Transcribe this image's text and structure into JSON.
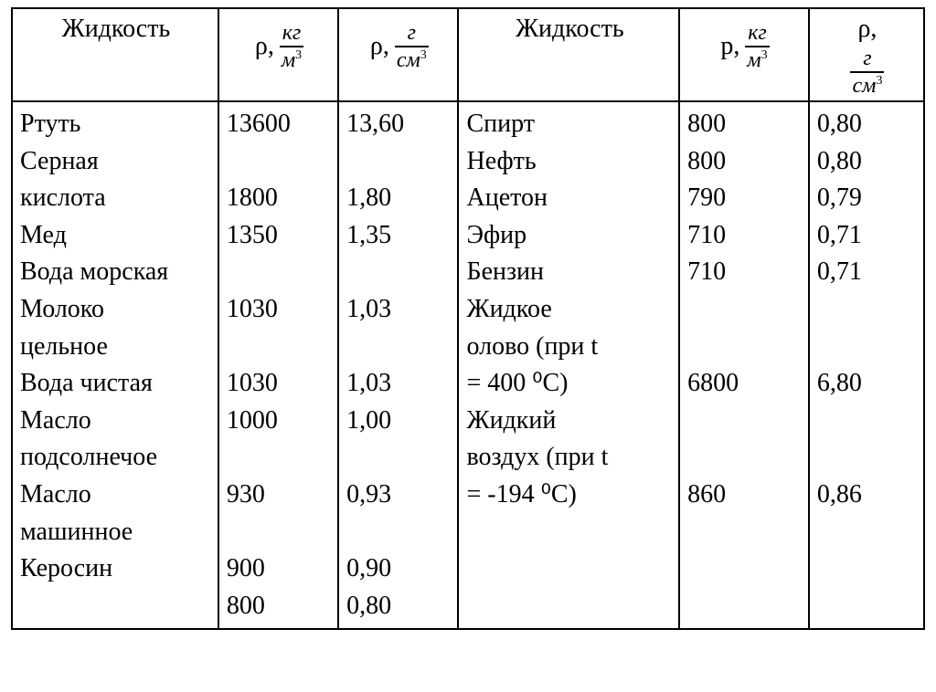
{
  "table": {
    "type": "table",
    "border_color": "#000000",
    "background_color": "#ffffff",
    "font_family": "Times New Roman",
    "body_fontsize": 28,
    "header": {
      "liquid_label": "Жидкость",
      "rho_kg_m3": {
        "symbol": "ρ,",
        "num": "кг",
        "den_base": "м",
        "den_sup": "3"
      },
      "rho_g_cm3": {
        "symbol": "ρ,",
        "num": "г",
        "den_base": "см",
        "den_sup": "3"
      },
      "rho_p_kg_m3": {
        "symbol": "р,",
        "num": "кг",
        "den_base": "м",
        "den_sup": "3"
      },
      "rho6": {
        "symbol": "ρ,",
        "num": "г",
        "den_base": "см",
        "den_sup": "3"
      }
    },
    "columns": {
      "left_names": "Ртуть\nСерная\nкислота\nМед\nВода морская\nМолоко\nцельное\nВода чистая\nМасло\nподсолнечое\nМасло\nмашинное\nКеросин\n",
      "left_kg": "13600\n\n1800\n1350\n\n1030\n\n1030\n1000\n\n930\n\n900\n800\n",
      "left_g": "13,60\n\n1,80\n1,35\n\n1,03\n\n1,03\n1,00\n\n0,93\n\n0,90\n0,80\n",
      "right_names": "Спирт\nНефть\nАцетон\nЭфир\nБензин\nЖидкое\nолово  (при  t\n= 400 ⁰С)\nЖидкий\nвоздух (при t\n= -194 ⁰С)",
      "right_kg": "800\n800\n790\n710\n710\n\n\n6800\n\n\n860",
      "right_g": "0,80\n0,80\n0,79\n0,71\n0,71\n\n\n6,80\n\n\n0,86"
    }
  }
}
